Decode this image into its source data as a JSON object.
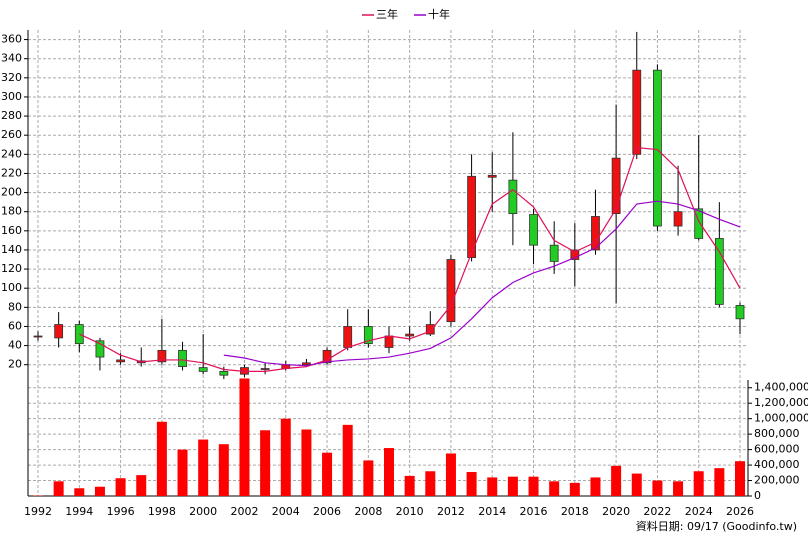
{
  "chart_data": {
    "type": "candlestick",
    "categories": [
      "1992",
      null,
      "1994",
      null,
      "1996",
      null,
      "1998",
      null,
      "2000",
      null,
      "2002",
      null,
      "2004",
      null,
      "2006",
      null,
      "2008",
      null,
      "2010",
      null,
      "2012",
      null,
      "2014",
      null,
      "2016",
      null,
      "2018",
      null,
      "2020",
      null,
      "2022",
      null,
      "2024",
      null,
      "2026"
    ],
    "open": [
      49,
      48,
      62,
      45,
      23,
      22,
      23,
      35,
      17,
      13,
      10,
      15,
      16,
      20,
      22,
      38,
      60,
      38,
      50,
      52,
      65,
      132,
      216,
      213,
      177,
      145,
      130,
      140,
      178,
      240,
      328,
      165,
      183,
      152,
      82
    ],
    "high": [
      55,
      75,
      66,
      48,
      32,
      38,
      68,
      44,
      52,
      18,
      20,
      22,
      24,
      26,
      38,
      78,
      78,
      60,
      60,
      76,
      135,
      240,
      242,
      263,
      183,
      170,
      168,
      203,
      292,
      368,
      334,
      228,
      260,
      190,
      85
    ],
    "low": [
      45,
      38,
      33,
      14,
      20,
      18,
      20,
      14,
      10,
      5,
      7,
      10,
      14,
      18,
      20,
      35,
      38,
      32,
      45,
      50,
      60,
      128,
      180,
      145,
      125,
      115,
      102,
      135,
      84,
      235,
      160,
      155,
      150,
      80,
      52
    ],
    "close": [
      50,
      62,
      42,
      28,
      25,
      24,
      35,
      18,
      13,
      9,
      17,
      16,
      20,
      22,
      35,
      60,
      42,
      50,
      52,
      62,
      130,
      217,
      218,
      178,
      145,
      128,
      140,
      175,
      236,
      328,
      165,
      180,
      152,
      83,
      68
    ],
    "up_color": "#ee1111",
    "down_color": "#22cc22",
    "series": [
      {
        "name": "三年",
        "color": "#e0105a",
        "values": [
          null,
          null,
          52,
          42,
          30,
          23,
          25,
          25,
          22,
          15,
          13,
          13,
          16,
          18,
          25,
          38,
          45,
          50,
          47,
          55,
          82,
          137,
          188,
          203,
          185,
          150,
          138,
          148,
          183,
          247,
          245,
          224,
          170,
          138,
          100
        ]
      },
      {
        "name": "十年",
        "color": "#9a00cc",
        "values": [
          null,
          null,
          null,
          null,
          null,
          null,
          null,
          null,
          null,
          30,
          27,
          22,
          20,
          19,
          23,
          25,
          26,
          28,
          32,
          37,
          48,
          68,
          90,
          106,
          116,
          123,
          132,
          142,
          162,
          188,
          191,
          188,
          181,
          172,
          164
        ]
      }
    ],
    "volume": [
      5000,
      190000,
      100000,
      120000,
      230000,
      270000,
      960000,
      600000,
      730000,
      670000,
      1520000,
      850000,
      1000000,
      860000,
      560000,
      920000,
      460000,
      620000,
      260000,
      320000,
      550000,
      310000,
      240000,
      250000,
      250000,
      190000,
      170000,
      240000,
      390000,
      290000,
      200000,
      190000,
      320000,
      360000,
      450000
    ],
    "volume_color": "#ff0000",
    "ylim": [
      4,
      370
    ],
    "yticks": [
      20,
      40,
      60,
      80,
      100,
      120,
      140,
      160,
      180,
      200,
      220,
      240,
      260,
      280,
      300,
      320,
      340,
      360
    ],
    "y2lim": [
      0,
      1500000
    ],
    "y2ticks": [
      0,
      {
        "value": 200000,
        "label": "200,000"
      },
      {
        "value": 400000,
        "label": "400,000"
      },
      {
        "value": 600000,
        "label": "600,000"
      },
      {
        "value": 800000,
        "label": "800,000"
      },
      {
        "value": 1000000,
        "label": "1,000,000"
      },
      {
        "value": 1200000,
        "label": "1,200,000"
      },
      {
        "value": 1400000,
        "label": "1,400,000"
      }
    ],
    "grid": true,
    "footnote": "資料日期: 09/17 (Goodinfo.tw)"
  }
}
